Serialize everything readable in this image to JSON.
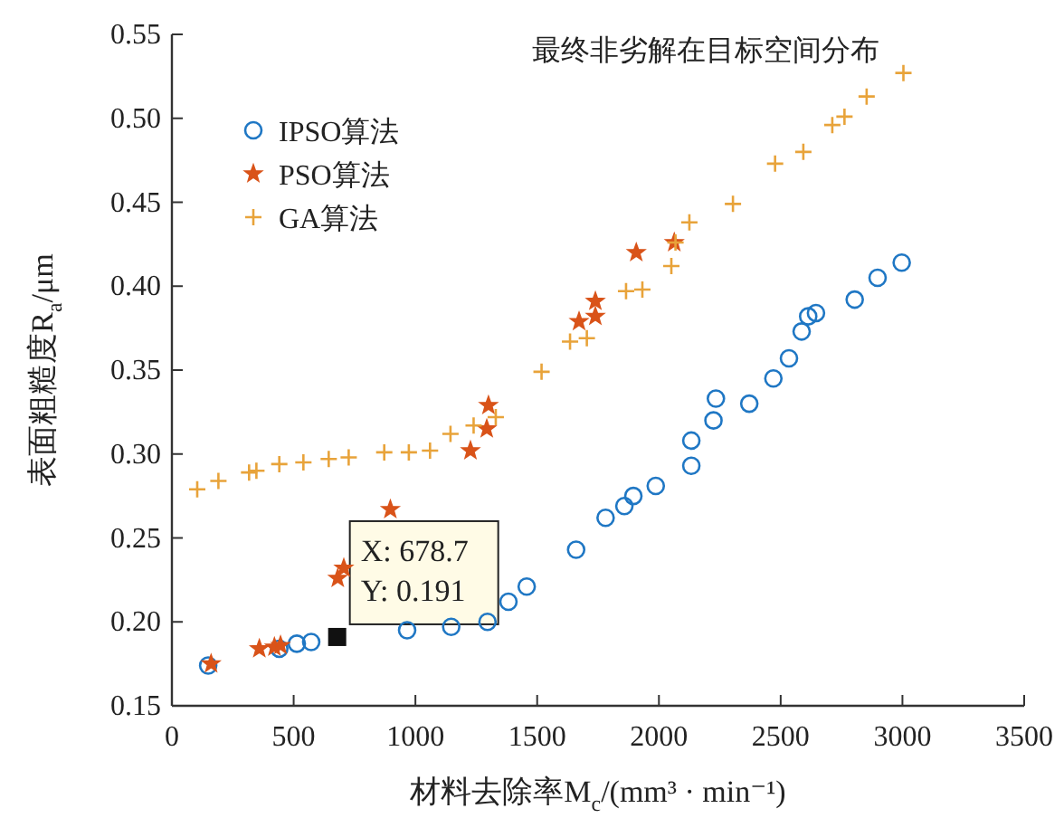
{
  "chart_data": {
    "type": "scatter",
    "title": "最终非劣解在目标空间分布",
    "xlabel": "材料去除率M$_{c}$/(mm³ · min⁻¹)",
    "ylabel": "表面粗糙度R$_{a}$/μm",
    "xlim": [
      0,
      3500
    ],
    "xticks": [
      0,
      500,
      1000,
      1500,
      2000,
      2500,
      3000,
      3500
    ],
    "ylim": [
      0.15,
      0.55
    ],
    "yticks": [
      0.15,
      {
        "value": 0.2,
        "label": "0.20"
      },
      0.25,
      {
        "value": 0.3,
        "label": "0.30"
      },
      0.35,
      {
        "value": 0.4,
        "label": "0.40"
      },
      0.45,
      {
        "value": 0.5,
        "label": "0.50"
      },
      0.55
    ],
    "grid": false,
    "legend": "top left",
    "series": [
      {
        "name": "IPSO算法",
        "color": "#1f77c4",
        "marker": "circle",
        "x": [
          149,
          441,
          513,
          572,
          966,
          1147,
          1296,
          1382,
          1457,
          1660,
          1781,
          1858,
          1895,
          1987,
          2133,
          2133,
          2224,
          2234,
          2371,
          2470,
          2534,
          2586,
          2613,
          2645,
          2804,
          2898,
          2997
        ],
        "values": [
          0.174,
          0.184,
          0.187,
          0.188,
          0.195,
          0.197,
          0.2,
          0.212,
          0.221,
          0.243,
          0.262,
          0.269,
          0.275,
          0.281,
          0.293,
          0.308,
          0.32,
          0.333,
          0.33,
          0.345,
          0.357,
          0.373,
          0.382,
          0.384,
          0.392,
          0.405,
          0.414
        ]
      },
      {
        "name": "PSO算法",
        "color": "#d95319",
        "marker": "star",
        "x": [
          161,
          359,
          421,
          446,
          681,
          706,
          897,
          1226,
          1293,
          1300,
          1672,
          1739,
          1739,
          1907,
          2063
        ],
        "values": [
          0.175,
          0.184,
          0.185,
          0.186,
          0.226,
          0.232,
          0.267,
          0.302,
          0.315,
          0.329,
          0.379,
          0.382,
          0.391,
          0.42,
          0.426
        ]
      },
      {
        "name": "GA算法",
        "color": "#e8a33a",
        "marker": "cross",
        "x": [
          104,
          191,
          317,
          347,
          441,
          540,
          644,
          726,
          872,
          973,
          1060,
          1144,
          1239,
          1330,
          1518,
          1635,
          1704,
          1865,
          1932,
          2051,
          2068,
          2125,
          2304,
          2477,
          2593,
          2712,
          2762,
          2853,
          3004
        ],
        "values": [
          0.279,
          0.284,
          0.289,
          0.29,
          0.294,
          0.295,
          0.297,
          0.298,
          0.301,
          0.301,
          0.302,
          0.312,
          0.317,
          0.322,
          0.349,
          0.367,
          0.369,
          0.397,
          0.398,
          0.412,
          0.426,
          0.438,
          0.449,
          0.473,
          0.48,
          0.496,
          0.501,
          0.513,
          0.527
        ]
      }
    ],
    "annotations": [
      {
        "text": "X: 678.7\nY: 0.191",
        "x": 678.7,
        "y": 0.191
      }
    ]
  }
}
